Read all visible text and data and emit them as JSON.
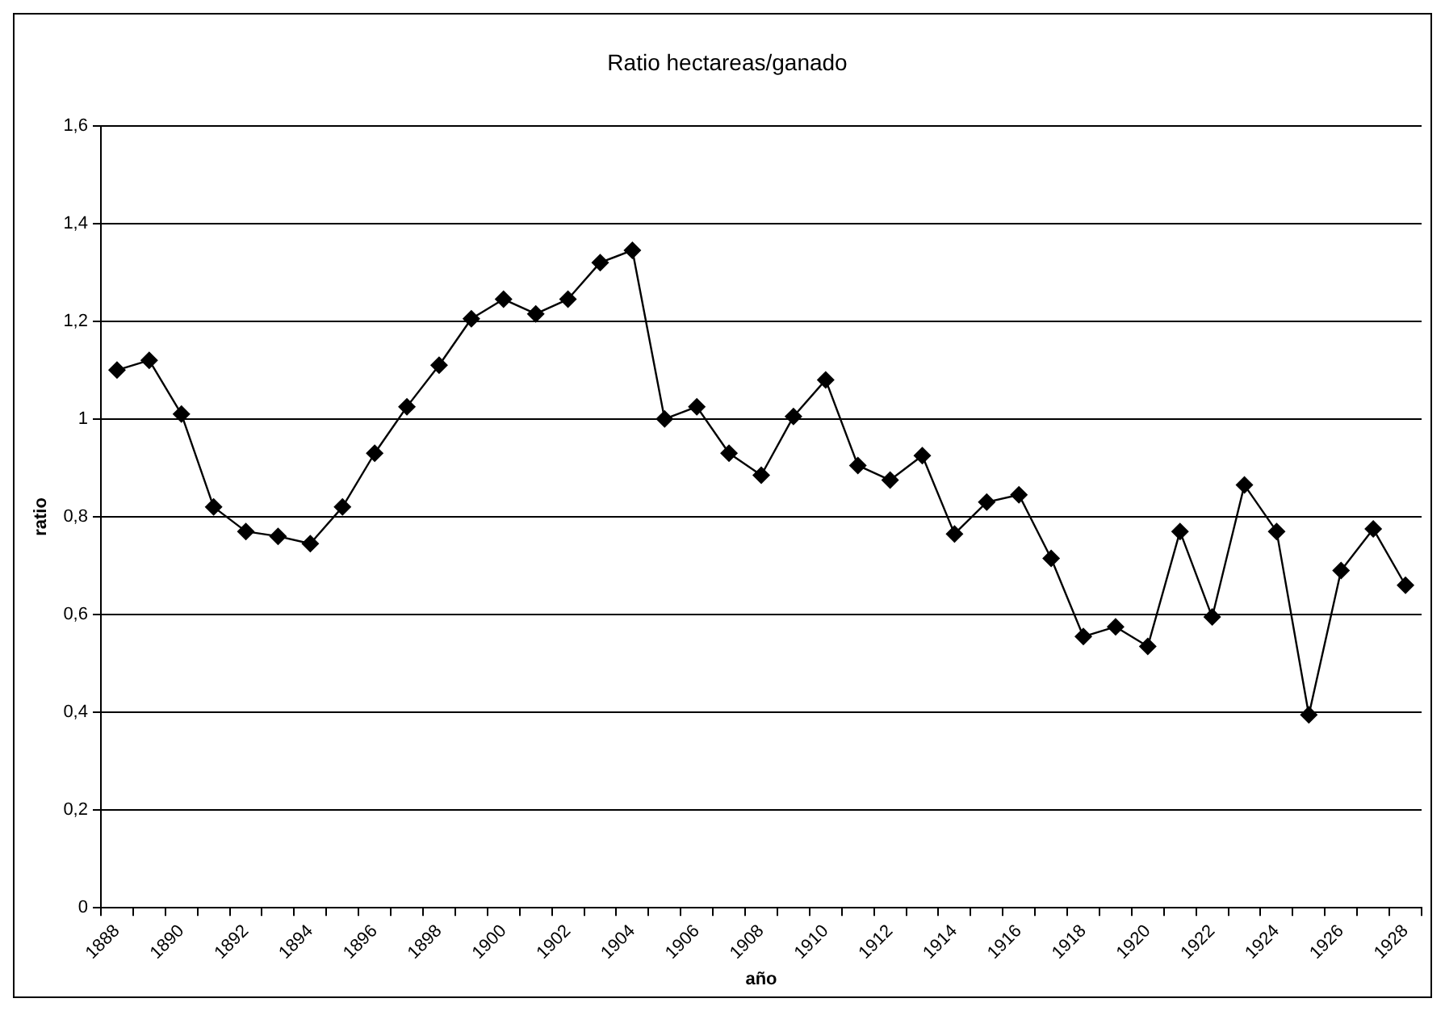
{
  "chart_data": {
    "type": "line",
    "title": "Ratio hectareas/ganado",
    "xlabel": "año",
    "ylabel": "ratio",
    "categories": [
      "1888",
      null,
      "1890",
      null,
      "1892",
      null,
      "1894",
      null,
      "1896",
      null,
      "1898",
      null,
      "1900",
      null,
      "1902",
      null,
      "1904",
      null,
      "1906",
      null,
      "1908",
      null,
      "1910",
      null,
      "1912",
      null,
      "1914",
      null,
      "1916",
      null,
      "1918",
      null,
      "1920",
      null,
      "1922",
      null,
      "1924",
      null,
      "1926",
      null,
      "1928"
    ],
    "series": [
      {
        "color": "#000000",
        "values": [
          1.1,
          1.12,
          1.01,
          0.82,
          0.77,
          0.76,
          0.745,
          0.82,
          0.93,
          1.025,
          1.11,
          1.205,
          1.245,
          1.215,
          1.245,
          1.32,
          1.345,
          1.0,
          1.025,
          0.93,
          0.885,
          1.005,
          1.08,
          0.905,
          0.875,
          0.925,
          0.765,
          0.83,
          0.845,
          0.715,
          0.555,
          0.575,
          0.535,
          0.77,
          0.595,
          0.865,
          0.77,
          0.395,
          0.69,
          0.775,
          0.66
        ]
      }
    ],
    "ylim": [
      0,
      1.6
    ],
    "yticks": [
      0,
      {
        "value": 0.2,
        "label": "0,2"
      },
      {
        "value": 0.4,
        "label": "0,4"
      },
      {
        "value": 0.6,
        "label": "0,6"
      },
      {
        "value": 0.8,
        "label": "0,8"
      },
      1,
      {
        "value": 1.2,
        "label": "1,2"
      },
      {
        "value": 1.4,
        "label": "1,4"
      },
      {
        "value": 1.6,
        "label": "1,6"
      }
    ],
    "grid": "y",
    "legend": false,
    "marker": "diamond",
    "line_style": "solid"
  }
}
